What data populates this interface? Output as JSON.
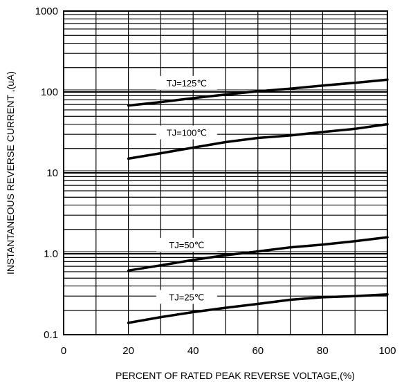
{
  "chart_data": {
    "type": "line",
    "xlabel": "PERCENT OF RATED PEAK REVERSE VOLTAGE,(%)",
    "ylabel": "INSTANTANEOUS  REVERSE  CURRENT ,(uA)",
    "xlim": [
      0,
      100
    ],
    "ylim": [
      0.1,
      1000
    ],
    "yscale": "log",
    "grid": true,
    "x_ticks": [
      0,
      20,
      40,
      60,
      80,
      100
    ],
    "x_tick_labels": [
      "0",
      "20",
      "40",
      "60",
      "80",
      "100"
    ],
    "y_ticks": [
      0.1,
      1,
      10,
      100,
      1000
    ],
    "y_tick_labels": [
      "0.1",
      "1.0",
      "10",
      "100",
      "1000"
    ],
    "series": [
      {
        "name": "TJ=125℃",
        "x": [
          20,
          30,
          40,
          50,
          60,
          70,
          80,
          90,
          100
        ],
        "y": [
          68,
          75,
          84,
          93,
          102,
          110,
          120,
          130,
          142
        ]
      },
      {
        "name": "TJ=100℃",
        "x": [
          20,
          30,
          40,
          50,
          60,
          70,
          80,
          90,
          100
        ],
        "y": [
          15,
          17.5,
          20.5,
          24,
          27,
          29,
          32,
          35,
          40
        ]
      },
      {
        "name": "TJ=50℃",
        "x": [
          20,
          30,
          40,
          50,
          60,
          70,
          80,
          90,
          100
        ],
        "y": [
          0.62,
          0.72,
          0.84,
          0.96,
          1.07,
          1.2,
          1.3,
          1.43,
          1.6
        ]
      },
      {
        "name": "TJ=25℃",
        "x": [
          20,
          30,
          40,
          50,
          60,
          70,
          80,
          90,
          100
        ],
        "y": [
          0.14,
          0.165,
          0.19,
          0.215,
          0.24,
          0.27,
          0.29,
          0.3,
          0.315
        ]
      }
    ]
  }
}
